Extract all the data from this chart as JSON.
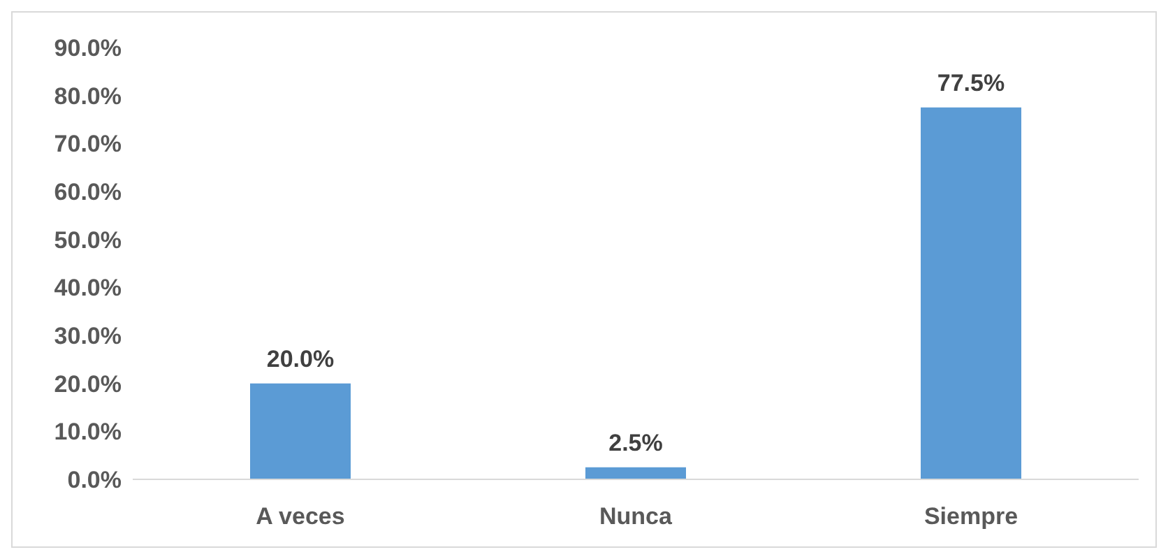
{
  "chart_data": {
    "type": "bar",
    "categories": [
      "A veces",
      "Nunca",
      "Siempre"
    ],
    "values": [
      20,
      2.5,
      77.5
    ],
    "value_labels": [
      "20.0%",
      "2.5%",
      "77.5%"
    ],
    "color": "#5b9bd5",
    "ylim": [
      0,
      90
    ],
    "yticks": [
      {
        "value": 0,
        "label": "0.0%"
      },
      {
        "value": 10,
        "label": "10.0%"
      },
      {
        "value": 20,
        "label": "20.0%"
      },
      {
        "value": 30,
        "label": "30.0%"
      },
      {
        "value": 40,
        "label": "40.0%"
      },
      {
        "value": 50,
        "label": "50.0%"
      },
      {
        "value": 60,
        "label": "60.0%"
      },
      {
        "value": 70,
        "label": "70.0%"
      },
      {
        "value": 80,
        "label": "80.0%"
      },
      {
        "value": 90,
        "label": "90.0%"
      }
    ],
    "grid": false
  }
}
